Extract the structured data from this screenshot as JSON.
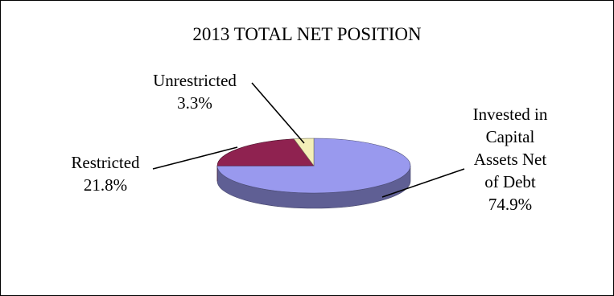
{
  "chart_data": {
    "type": "pie",
    "style": "3d",
    "title": "2013 TOTAL NET POSITION",
    "slices": [
      {
        "name_lines": [
          "Invested in",
          "Capital",
          "Assets Net",
          "of Debt"
        ],
        "pct_label": "74.9%",
        "value": 74.9,
        "color": "#9999ee"
      },
      {
        "name_lines": [
          "Restricted"
        ],
        "pct_label": "21.8%",
        "value": 21.8,
        "color": "#8f2250"
      },
      {
        "name_lines": [
          "Unrestricted"
        ],
        "pct_label": "3.3%",
        "value": 3.3,
        "color": "#f4efb8"
      }
    ]
  }
}
